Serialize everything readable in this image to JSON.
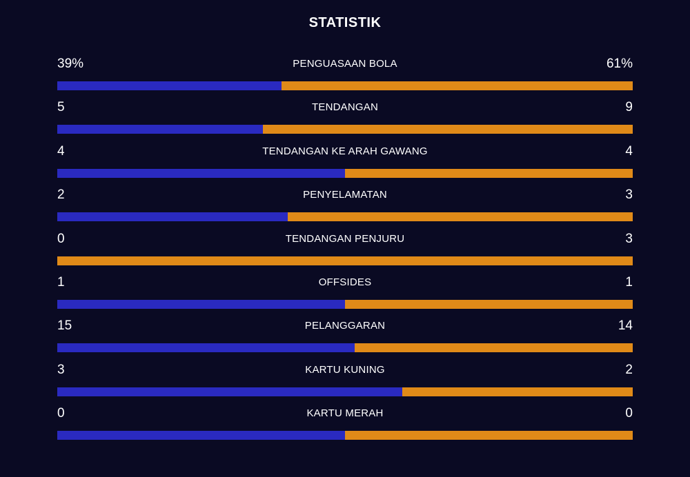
{
  "title": "STATISTIK",
  "colors": {
    "background": "#0a0a23",
    "home": "#2a2ac0",
    "away": "#e08a18",
    "text": "#ffffff"
  },
  "stats": [
    {
      "label": "PENGUASAAN BOLA",
      "home": "39%",
      "away": "61%",
      "home_share": 0.39
    },
    {
      "label": "TENDANGAN",
      "home": "5",
      "away": "9",
      "home_share": 0.357
    },
    {
      "label": "TENDANGAN KE ARAH GAWANG",
      "home": "4",
      "away": "4",
      "home_share": 0.5
    },
    {
      "label": "PENYELAMATAN",
      "home": "2",
      "away": "3",
      "home_share": 0.4
    },
    {
      "label": "TENDANGAN PENJURU",
      "home": "0",
      "away": "3",
      "home_share": 0.0
    },
    {
      "label": "OFFSIDES",
      "home": "1",
      "away": "1",
      "home_share": 0.5
    },
    {
      "label": "PELANGGARAN",
      "home": "15",
      "away": "14",
      "home_share": 0.517
    },
    {
      "label": "KARTU KUNING",
      "home": "3",
      "away": "2",
      "home_share": 0.6
    },
    {
      "label": "KARTU MERAH",
      "home": "0",
      "away": "0",
      "home_share": 0.5
    }
  ]
}
